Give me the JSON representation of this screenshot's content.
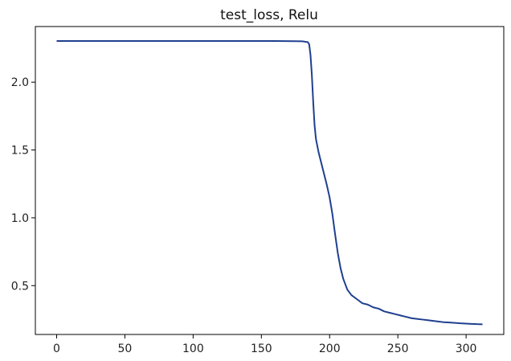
{
  "chart_data": {
    "type": "line",
    "title": "test_loss, Relu",
    "xlabel": "",
    "ylabel": "",
    "xlim": [
      -15.6,
      327.6
    ],
    "ylim": [
      0.14,
      2.41
    ],
    "xticks": [
      0,
      50,
      100,
      150,
      200,
      250,
      300
    ],
    "yticks": [
      0.5,
      1.0,
      1.5,
      2.0
    ],
    "ytick_labels": [
      "0.5",
      "1.0",
      "1.5",
      "2.0"
    ],
    "grid": false,
    "series": [
      {
        "color": "#1f3f8f",
        "x": [
          0,
          20,
          40,
          60,
          80,
          100,
          120,
          140,
          160,
          175,
          180,
          184,
          185,
          186,
          187,
          188,
          189,
          190,
          192,
          195,
          198,
          200,
          202,
          204,
          206,
          208,
          210,
          213,
          216,
          220,
          224,
          228,
          232,
          236,
          240,
          244,
          248,
          252,
          256,
          260,
          264,
          268,
          272,
          276,
          280,
          284,
          288,
          292,
          296,
          300,
          304,
          308,
          312
        ],
        "y": [
          2.303,
          2.303,
          2.303,
          2.303,
          2.303,
          2.303,
          2.303,
          2.303,
          2.303,
          2.302,
          2.301,
          2.295,
          2.28,
          2.2,
          2.05,
          1.85,
          1.68,
          1.58,
          1.48,
          1.36,
          1.24,
          1.15,
          1.03,
          0.88,
          0.74,
          0.63,
          0.55,
          0.47,
          0.43,
          0.4,
          0.37,
          0.36,
          0.34,
          0.33,
          0.31,
          0.3,
          0.29,
          0.28,
          0.27,
          0.26,
          0.255,
          0.25,
          0.245,
          0.24,
          0.235,
          0.23,
          0.228,
          0.225,
          0.222,
          0.22,
          0.218,
          0.216,
          0.215
        ]
      }
    ]
  }
}
